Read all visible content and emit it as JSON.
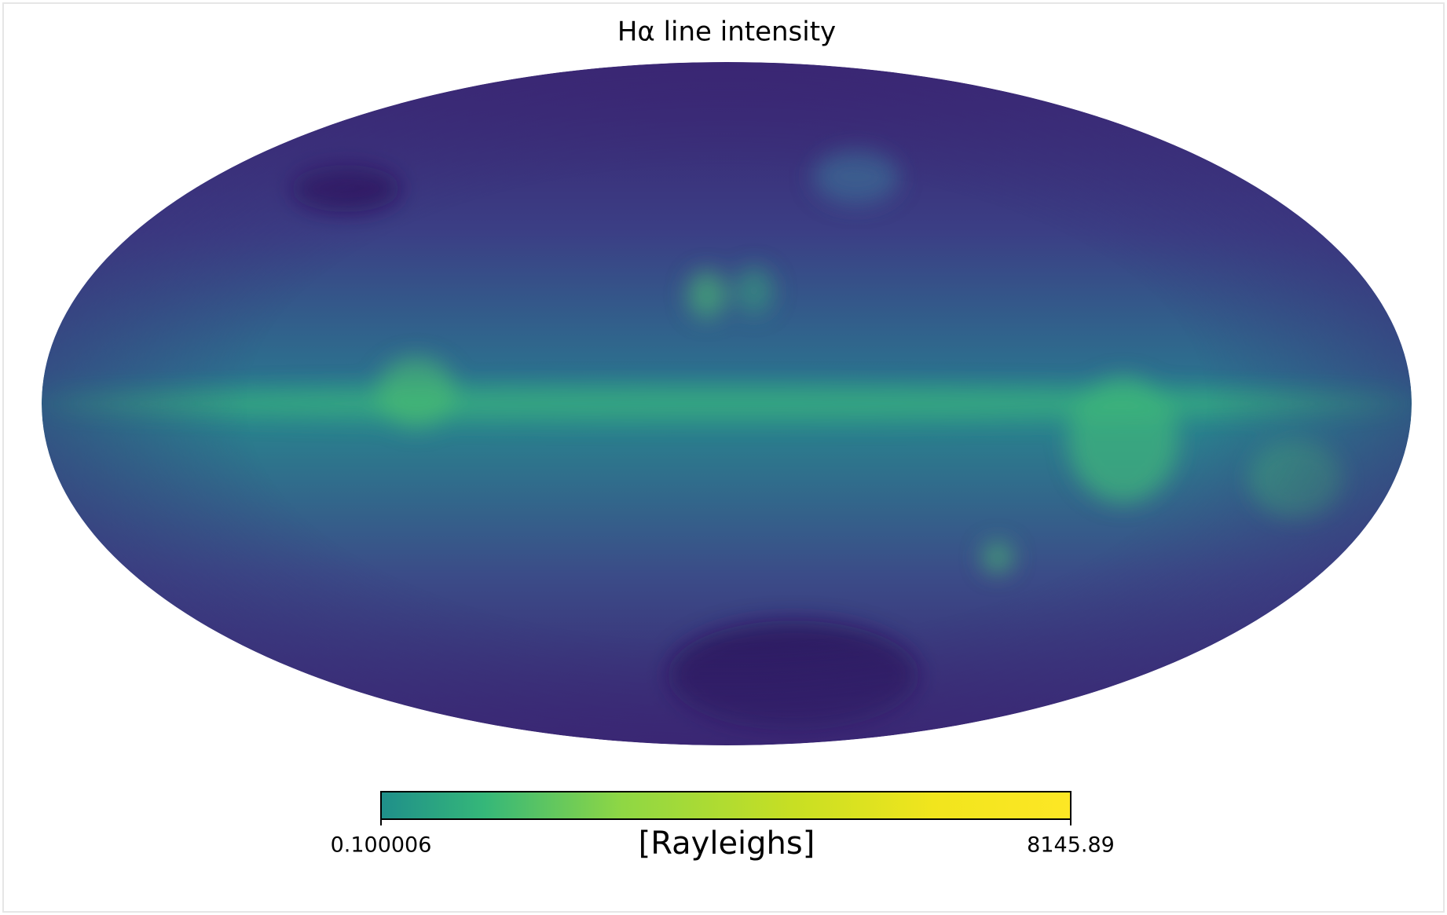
{
  "chart_data": {
    "type": "mollweide",
    "title": "Hα line intensity",
    "colorbar_label": "[Rayleighs]",
    "clim": [
      0.100006,
      8145.89
    ],
    "colormap": "viridis"
  }
}
